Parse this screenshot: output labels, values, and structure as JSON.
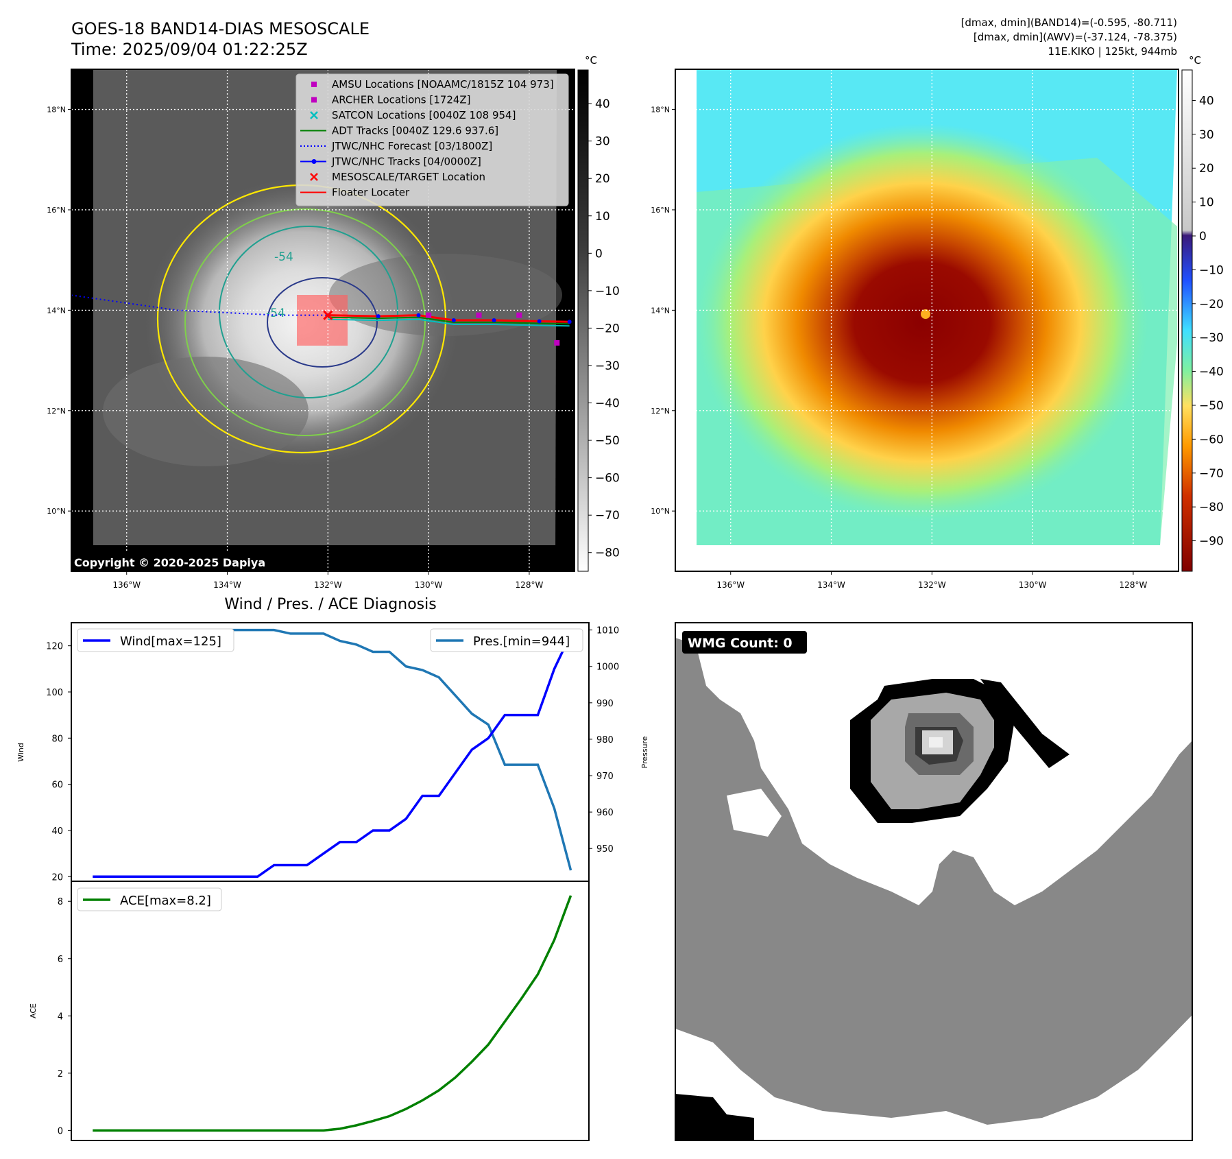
{
  "header": {
    "title_line1": "GOES-18 BAND14-DIAS MESOSCALE",
    "title_line2": "Time: 2025/09/04 01:22:25Z",
    "info_line1": "[dmax, dmin](BAND14)=(-0.595, -80.711)",
    "info_line2": "[dmax, dmin](AWV)=(-37.124, -78.375)",
    "info_line3": "11E.KIKO | 125kt, 944mb"
  },
  "map_axes": {
    "lon_ticks": [
      "136°W",
      "134°W",
      "132°W",
      "130°W",
      "128°W"
    ],
    "lat_ticks": [
      "18°N",
      "16°N",
      "14°N",
      "12°N",
      "10°N"
    ],
    "lon_values": [
      -136,
      -134,
      -132,
      -130,
      -128
    ],
    "lat_values": [
      18,
      16,
      14,
      12,
      10
    ],
    "lon_range": [
      -137.1,
      -127.1
    ],
    "lat_range": [
      8.8,
      18.8
    ],
    "grid": "dotted"
  },
  "ir_panel": {
    "copyright": "Copyright © 2020-2025 Dapiya",
    "colorbar_unit": "°C",
    "colorbar_ticks": [
      "40",
      "30",
      "20",
      "10",
      "0",
      "−10",
      "−20",
      "−30",
      "−40",
      "−50",
      "−60",
      "−70",
      "−80"
    ],
    "colorbar_values": [
      40,
      30,
      20,
      10,
      0,
      -10,
      -20,
      -30,
      -40,
      -50,
      -60,
      -70,
      -80
    ],
    "colorbar_range": [
      -85,
      49
    ],
    "contour_labels": [
      "-54",
      "-54"
    ],
    "legend": [
      {
        "label": "AMSU Locations [NOAAMC/1815Z 104 973]",
        "marker": "square",
        "color": "#c000c0"
      },
      {
        "label": "ARCHER Locations [1724Z]",
        "marker": "square",
        "color": "#c000c0"
      },
      {
        "label": "SATCON Locations [0040Z 108 954]",
        "marker": "x",
        "color": "#00bfbf"
      },
      {
        "label": "ADT Tracks [0040Z 129.6 937.6]",
        "marker": "line",
        "color": "#008000"
      },
      {
        "label": "JTWC/NHC Forecast [03/1800Z]",
        "marker": "dotted",
        "color": "#0000ff"
      },
      {
        "label": "JTWC/NHC Tracks [04/0000Z]",
        "marker": "line-dot",
        "color": "#0000ff"
      },
      {
        "label": "MESOSCALE/TARGET Location",
        "marker": "x",
        "color": "#ff0000"
      },
      {
        "label": "Floater Locater",
        "marker": "line",
        "color": "#ff0000"
      }
    ],
    "center_lonlat": [
      -132,
      13.9
    ]
  },
  "awv_panel": {
    "colorbar_unit": "°C",
    "colorbar_ticks": [
      "40",
      "30",
      "20",
      "10",
      "0",
      "−10",
      "−20",
      "−30",
      "−40",
      "−50",
      "−60",
      "−70",
      "−80",
      "−90"
    ],
    "colorbar_values": [
      40,
      30,
      20,
      10,
      0,
      -10,
      -20,
      -30,
      -40,
      -50,
      -60,
      -70,
      -80,
      -90
    ],
    "colorbar_range": [
      -99,
      49
    ]
  },
  "wmg_panel": {
    "badge": "WMG Count: 0"
  },
  "chart_data": [
    {
      "type": "line",
      "title": "Wind / Pres. / ACE Diagnosis",
      "ylabel": "Wind",
      "y2label": "Pressure",
      "ylim": [
        18,
        130
      ],
      "y2lim": [
        941,
        1012
      ],
      "yticks": [
        20,
        40,
        60,
        80,
        100,
        120
      ],
      "y2ticks": [
        950,
        960,
        970,
        980,
        990,
        1000,
        1010
      ],
      "x": [
        0,
        1,
        2,
        3,
        4,
        5,
        6,
        7,
        8,
        9,
        10,
        11,
        12,
        13,
        14,
        15,
        16,
        17,
        18,
        19,
        20,
        21,
        22,
        23,
        24,
        25,
        26,
        27,
        28,
        29
      ],
      "xlim": [
        -1.3,
        30.1
      ],
      "series": [
        {
          "name": "Wind[max=125]",
          "axis": "left",
          "color": "#0000ff",
          "values": [
            20,
            20,
            20,
            20,
            20,
            20,
            20,
            20,
            20,
            20,
            20,
            25,
            25,
            25,
            30,
            35,
            35,
            40,
            40,
            45,
            55,
            55,
            65,
            75,
            80,
            90,
            90,
            90,
            110,
            125
          ]
        },
        {
          "name": "Pres.[min=944]",
          "axis": "right",
          "color": "#1f77b4",
          "values": [
            1010,
            1010,
            1010,
            1010,
            1010,
            1010,
            1010,
            1010,
            1010,
            1010,
            1010,
            1010,
            1009,
            1009,
            1009,
            1007,
            1006,
            1004,
            1004,
            1000,
            999,
            997,
            992,
            987,
            984,
            973,
            973,
            973,
            961,
            944
          ]
        }
      ]
    },
    {
      "type": "line",
      "ylabel": "ACE",
      "ylim": [
        -0.35,
        8.7
      ],
      "yticks": [
        0,
        2,
        4,
        6,
        8
      ],
      "x": [
        0,
        1,
        2,
        3,
        4,
        5,
        6,
        7,
        8,
        9,
        10,
        11,
        12,
        13,
        14,
        15,
        16,
        17,
        18,
        19,
        20,
        21,
        22,
        23,
        24,
        25,
        26,
        27,
        28,
        29
      ],
      "xlim": [
        -1.3,
        30.1
      ],
      "series": [
        {
          "name": "ACE[max=8.2]",
          "color": "#008000",
          "values": [
            0,
            0,
            0,
            0,
            0,
            0,
            0,
            0,
            0,
            0,
            0,
            0,
            0,
            0,
            0,
            0.06,
            0.18,
            0.33,
            0.5,
            0.75,
            1.05,
            1.4,
            1.85,
            2.4,
            3.0,
            3.8,
            4.6,
            5.45,
            6.65,
            8.2
          ]
        }
      ]
    }
  ]
}
